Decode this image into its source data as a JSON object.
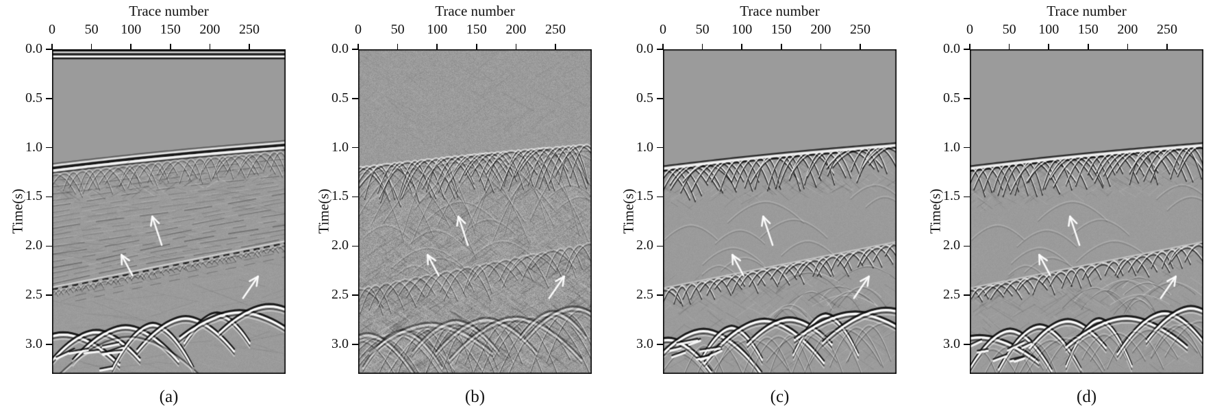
{
  "figure": {
    "x_axis": {
      "title": "Trace number",
      "tick_labels": [
        "0",
        "50",
        "100",
        "150",
        "200",
        "250"
      ],
      "tick_values": [
        0,
        50,
        100,
        150,
        200,
        250
      ],
      "range": [
        0,
        296
      ]
    },
    "y_axis": {
      "title": "Time(s)",
      "tick_labels": [
        "0.0",
        "0.5",
        "1.0",
        "1.5",
        "2.0",
        "2.5",
        "3.0"
      ],
      "tick_values": [
        0,
        0.5,
        1,
        1.5,
        2,
        2.5,
        3
      ],
      "range": [
        0,
        3.3
      ]
    },
    "panels": [
      {
        "id": "a",
        "caption": "(a)",
        "style": "raw"
      },
      {
        "id": "b",
        "caption": "(b)",
        "style": "noisy"
      },
      {
        "id": "c",
        "caption": "(c)",
        "style": "clean"
      },
      {
        "id": "d",
        "caption": "(d)",
        "style": "clean"
      }
    ],
    "arrows": [
      {
        "name": "upper-arrow",
        "tail": {
          "trace": 139,
          "time_s": 1.99
        },
        "tip": {
          "trace": 127,
          "time_s": 1.7
        }
      },
      {
        "name": "middle-arrow",
        "tail": {
          "trace": 102,
          "time_s": 2.3
        },
        "tip": {
          "trace": 88,
          "time_s": 2.09
        }
      },
      {
        "name": "lower-arrow",
        "tail": {
          "trace": 242,
          "time_s": 2.53
        },
        "tip": {
          "trace": 261,
          "time_s": 2.31
        }
      }
    ],
    "colors": {
      "background": "#ffffff",
      "image_gray": "#9b9b9b",
      "axis": "#000000",
      "annotation": "#ffffff"
    }
  },
  "chart_data": {
    "type": "heatmap",
    "colormap": "grayscale",
    "x": {
      "label": "Trace number",
      "ticks": [
        0,
        50,
        100,
        150,
        200,
        250
      ],
      "range": [
        0,
        296
      ]
    },
    "y": {
      "label": "Time(s)",
      "ticks": [
        0.0,
        0.5,
        1.0,
        1.5,
        2.0,
        2.5,
        3.0
      ],
      "range": [
        0,
        3.3
      ],
      "direction": "down"
    },
    "subplots": [
      {
        "label": "(a)",
        "appearance": "seismic section with horizontal direct-wave stripes at 0.0 s, continuous dipping reflector near 1.2-0.95 s, fine layered reflections 1.3-2.4 s, beaded dipping reflector 2.45-1.95 s, strong overlapping diffraction arcs 2.6-3.3 s"
      },
      {
        "label": "(b)",
        "appearance": "same section dominated by grainy random noise and dense criss-crossing migration-smile hyperbolas along every reflector"
      },
      {
        "label": "(c)",
        "appearance": "denoised section: smooth gray background, scalloped hyperbolic reflector segments at 1.0-1.5 s, faint residual arcs 1.5-2.2 s, clean diffraction arcs at bottom"
      },
      {
        "label": "(d)",
        "appearance": "denoised section, nearly identical to panel (c)"
      }
    ],
    "events": [
      {
        "name": "first-reflector",
        "time_at_trace0_s": 1.21,
        "time_at_trace296_s": 0.97
      },
      {
        "name": "second-reflector",
        "time_at_trace0_s": 2.44,
        "time_at_trace296_s": 1.97
      },
      {
        "name": "deep-diffraction-zone",
        "time_at_trace0_s": 3.05,
        "time_at_trace296_s": 2.65
      }
    ],
    "arrow_annotations": [
      {
        "panel": "all",
        "trace": 127,
        "time_s": 1.7,
        "direction": "up-left"
      },
      {
        "panel": "all",
        "trace": 88,
        "time_s": 2.09,
        "direction": "up-left"
      },
      {
        "panel": "all",
        "trace": 261,
        "time_s": 2.31,
        "direction": "up-right"
      }
    ]
  }
}
